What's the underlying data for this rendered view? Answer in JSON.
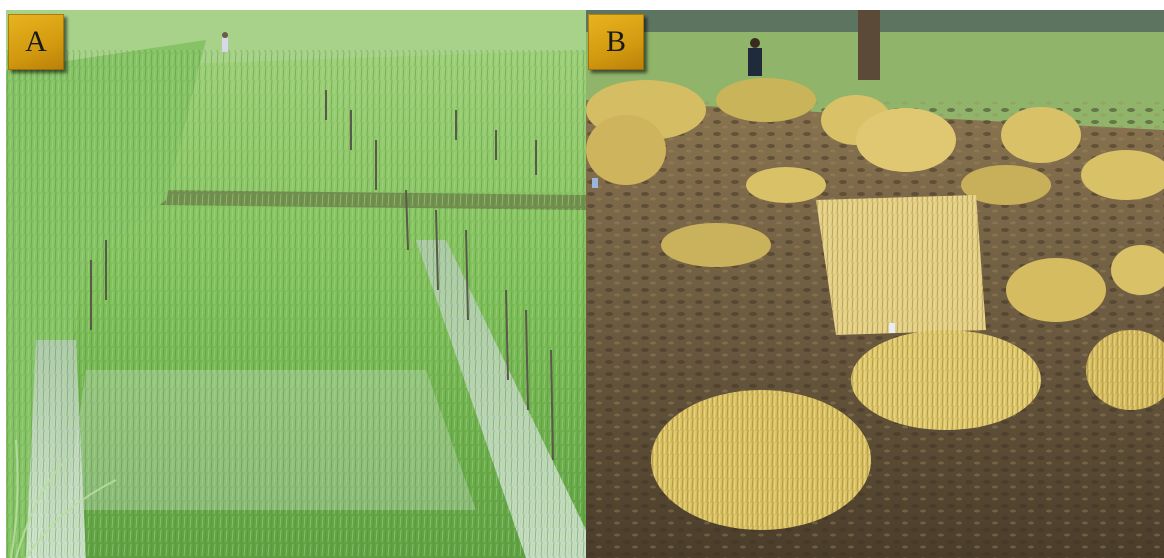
{
  "panels": [
    {
      "label": "A",
      "scene": "green-paddy-field",
      "colors": {
        "sky": "#c8d8c0",
        "crop": "#7fbf5a",
        "crop_dark": "#4f8f3a",
        "water": "#c9d9d4"
      }
    },
    {
      "label": "B",
      "scene": "harvested-rice-bundles",
      "colors": {
        "soil": "#6b5a40",
        "soil_dark": "#3f3424",
        "straw": "#d9c168",
        "background_grass": "#8fb46a"
      }
    }
  ]
}
